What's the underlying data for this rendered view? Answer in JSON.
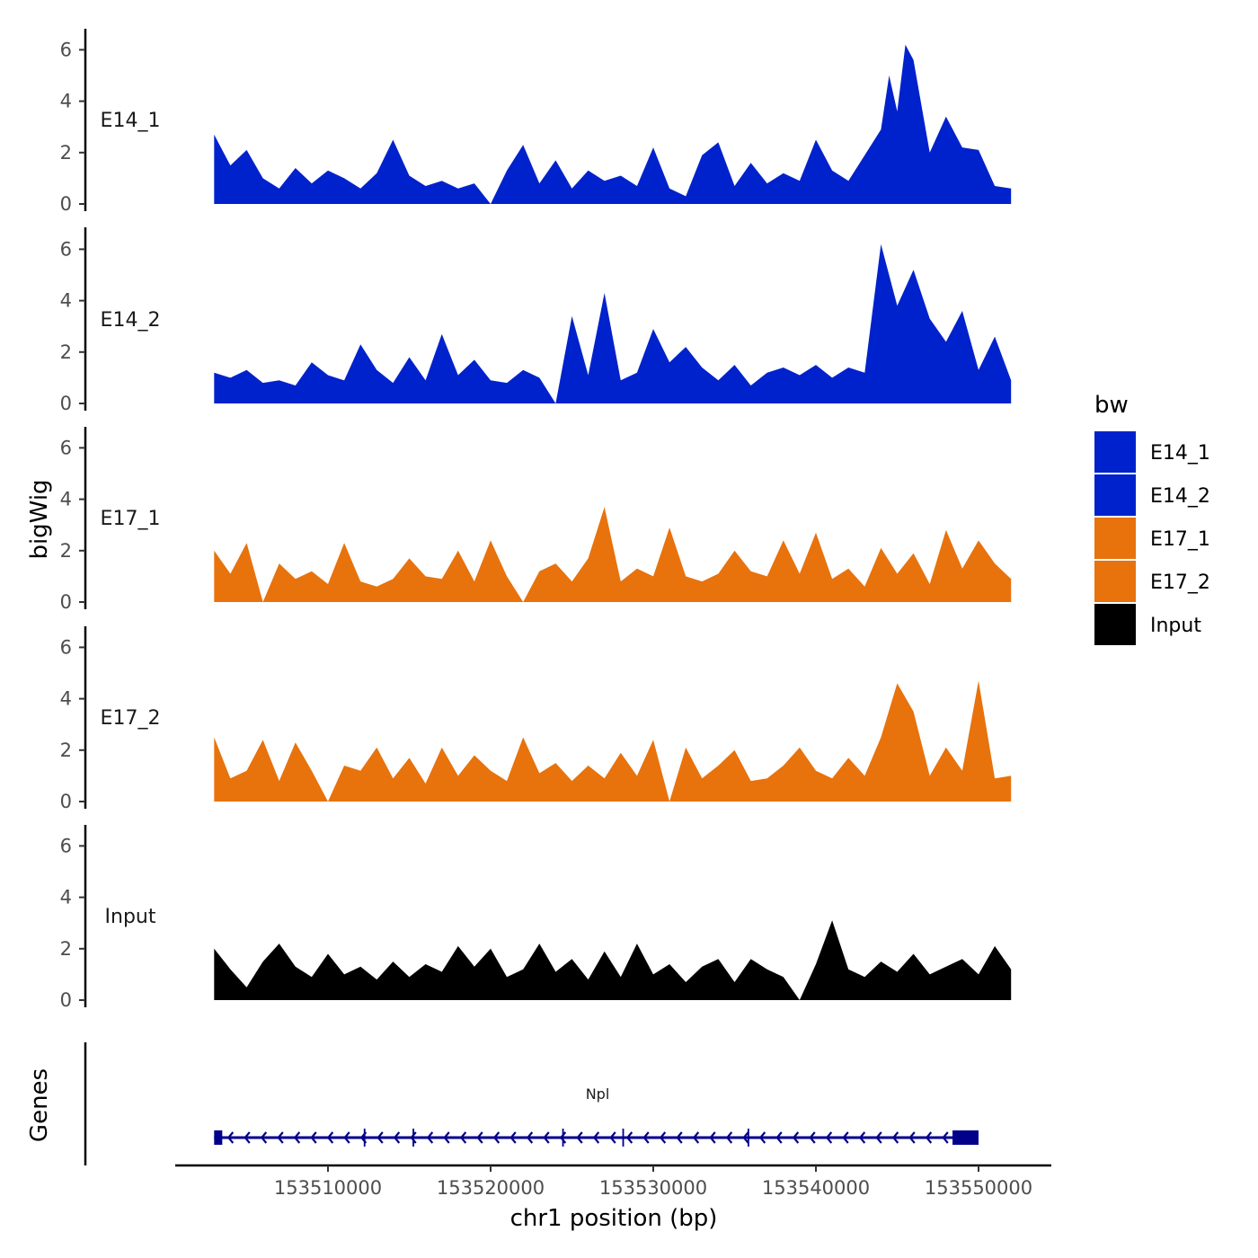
{
  "chart_data": {
    "type": "area",
    "ylabel": "bigWig",
    "xlabel": "chr1 position (bp)",
    "genes_label": "Genes",
    "x_range": [
      153503000,
      153552000
    ],
    "x_ticks": [
      153510000,
      153520000,
      153530000,
      153540000,
      153550000
    ],
    "x_tick_labels": [
      "153510000",
      "153520000",
      "153530000",
      "153540000",
      "153550000"
    ],
    "ylim": [
      0,
      6.8
    ],
    "y_ticks": [
      0,
      2,
      4,
      6
    ],
    "y_tick_labels": [
      "0",
      "2",
      "4",
      "6"
    ],
    "legend": {
      "title": "bw",
      "position": "right",
      "entries": [
        {
          "label": "E14_1",
          "color": "#0022CC"
        },
        {
          "label": "E14_2",
          "color": "#0022CC"
        },
        {
          "label": "E17_1",
          "color": "#E8720C"
        },
        {
          "label": "E17_2",
          "color": "#E8720C"
        },
        {
          "label": "Input",
          "color": "#000000"
        }
      ]
    },
    "series": [
      {
        "name": "E14_1",
        "color": "#0022CC",
        "x": [
          153503000,
          153504000,
          153505000,
          153506000,
          153507000,
          153508000,
          153509000,
          153510000,
          153511000,
          153512000,
          153513000,
          153514000,
          153515000,
          153516000,
          153517000,
          153518000,
          153519000,
          153520000,
          153521000,
          153522000,
          153523000,
          153524000,
          153525000,
          153526000,
          153527000,
          153528000,
          153529000,
          153530000,
          153531000,
          153532000,
          153533000,
          153534000,
          153535000,
          153536000,
          153537000,
          153538000,
          153539000,
          153540000,
          153541000,
          153542000,
          153543000,
          153544000,
          153544500,
          153545000,
          153545500,
          153546000,
          153547000,
          153548000,
          153549000,
          153550000,
          153551000,
          153552000
        ],
        "values": [
          2.7,
          1.5,
          2.1,
          1.0,
          0.6,
          1.4,
          0.8,
          1.3,
          1.0,
          0.6,
          1.2,
          2.5,
          1.1,
          0.7,
          0.9,
          0.6,
          0.8,
          0.0,
          1.3,
          2.3,
          0.8,
          1.7,
          0.6,
          1.3,
          0.9,
          1.1,
          0.7,
          2.2,
          0.6,
          0.3,
          1.9,
          2.4,
          0.7,
          1.6,
          0.8,
          1.2,
          0.9,
          2.5,
          1.3,
          0.9,
          1.9,
          2.9,
          5.0,
          3.6,
          6.2,
          5.6,
          2.0,
          3.4,
          2.2,
          2.1,
          0.7,
          0.6
        ]
      },
      {
        "name": "E14_2",
        "color": "#0022CC",
        "x": [
          153503000,
          153504000,
          153505000,
          153506000,
          153507000,
          153508000,
          153509000,
          153510000,
          153511000,
          153512000,
          153513000,
          153514000,
          153515000,
          153516000,
          153517000,
          153518000,
          153519000,
          153520000,
          153521000,
          153522000,
          153523000,
          153524000,
          153525000,
          153526000,
          153527000,
          153528000,
          153529000,
          153530000,
          153531000,
          153532000,
          153533000,
          153534000,
          153535000,
          153536000,
          153537000,
          153538000,
          153539000,
          153540000,
          153541000,
          153542000,
          153543000,
          153544000,
          153545000,
          153546000,
          153547000,
          153548000,
          153549000,
          153550000,
          153551000,
          153552000
        ],
        "values": [
          1.2,
          1.0,
          1.3,
          0.8,
          0.9,
          0.7,
          1.6,
          1.1,
          0.9,
          2.3,
          1.3,
          0.8,
          1.8,
          0.9,
          2.7,
          1.1,
          1.7,
          0.9,
          0.8,
          1.3,
          1.0,
          0.0,
          3.4,
          1.1,
          4.3,
          0.9,
          1.2,
          2.9,
          1.6,
          2.2,
          1.4,
          0.9,
          1.5,
          0.7,
          1.2,
          1.4,
          1.1,
          1.5,
          1.0,
          1.4,
          1.2,
          6.2,
          3.8,
          5.2,
          3.3,
          2.4,
          3.6,
          1.3,
          2.6,
          0.9
        ]
      },
      {
        "name": "E17_1",
        "color": "#E8720C",
        "x": [
          153503000,
          153504000,
          153505000,
          153506000,
          153507000,
          153508000,
          153509000,
          153510000,
          153511000,
          153512000,
          153513000,
          153514000,
          153515000,
          153516000,
          153517000,
          153518000,
          153519000,
          153520000,
          153521000,
          153522000,
          153523000,
          153524000,
          153525000,
          153526000,
          153527000,
          153528000,
          153529000,
          153530000,
          153531000,
          153532000,
          153533000,
          153534000,
          153535000,
          153536000,
          153537000,
          153538000,
          153539000,
          153540000,
          153541000,
          153542000,
          153543000,
          153544000,
          153545000,
          153546000,
          153547000,
          153548000,
          153549000,
          153550000,
          153551000,
          153552000
        ],
        "values": [
          2.0,
          1.1,
          2.3,
          0.0,
          1.5,
          0.9,
          1.2,
          0.7,
          2.3,
          0.8,
          0.6,
          0.9,
          1.7,
          1.0,
          0.9,
          2.0,
          0.8,
          2.4,
          1.0,
          0.0,
          1.2,
          1.5,
          0.8,
          1.7,
          3.7,
          0.8,
          1.3,
          1.0,
          2.9,
          1.0,
          0.8,
          1.1,
          2.0,
          1.2,
          1.0,
          2.4,
          1.1,
          2.7,
          0.9,
          1.3,
          0.6,
          2.1,
          1.1,
          1.9,
          0.7,
          2.8,
          1.3,
          2.4,
          1.5,
          0.9
        ]
      },
      {
        "name": "E17_2",
        "color": "#E8720C",
        "x": [
          153503000,
          153504000,
          153505000,
          153506000,
          153507000,
          153508000,
          153509000,
          153510000,
          153511000,
          153512000,
          153513000,
          153514000,
          153515000,
          153516000,
          153517000,
          153518000,
          153519000,
          153520000,
          153521000,
          153522000,
          153523000,
          153524000,
          153525000,
          153526000,
          153527000,
          153528000,
          153529000,
          153530000,
          153531000,
          153532000,
          153533000,
          153534000,
          153535000,
          153536000,
          153537000,
          153538000,
          153539000,
          153540000,
          153541000,
          153542000,
          153543000,
          153544000,
          153545000,
          153546000,
          153547000,
          153548000,
          153549000,
          153550000,
          153551000,
          153552000
        ],
        "values": [
          2.5,
          0.9,
          1.2,
          2.4,
          0.8,
          2.3,
          1.2,
          0.0,
          1.4,
          1.2,
          2.1,
          0.9,
          1.7,
          0.7,
          2.1,
          1.0,
          1.8,
          1.2,
          0.8,
          2.5,
          1.1,
          1.5,
          0.8,
          1.4,
          0.9,
          1.9,
          1.0,
          2.4,
          0.0,
          2.1,
          0.9,
          1.4,
          2.0,
          0.8,
          0.9,
          1.4,
          2.1,
          1.2,
          0.9,
          1.7,
          1.0,
          2.5,
          4.6,
          3.5,
          1.0,
          2.1,
          1.2,
          4.7,
          0.9,
          1.0
        ]
      },
      {
        "name": "Input",
        "color": "#000000",
        "x": [
          153503000,
          153504000,
          153505000,
          153506000,
          153507000,
          153508000,
          153509000,
          153510000,
          153511000,
          153512000,
          153513000,
          153514000,
          153515000,
          153516000,
          153517000,
          153518000,
          153519000,
          153520000,
          153521000,
          153522000,
          153523000,
          153524000,
          153525000,
          153526000,
          153527000,
          153528000,
          153529000,
          153530000,
          153531000,
          153532000,
          153533000,
          153534000,
          153535000,
          153536000,
          153537000,
          153538000,
          153539000,
          153540000,
          153541000,
          153542000,
          153543000,
          153544000,
          153545000,
          153546000,
          153547000,
          153548000,
          153549000,
          153550000,
          153551000,
          153552000
        ],
        "values": [
          2.0,
          1.2,
          0.5,
          1.5,
          2.2,
          1.3,
          0.9,
          1.8,
          1.0,
          1.3,
          0.8,
          1.5,
          0.9,
          1.4,
          1.1,
          2.1,
          1.3,
          2.0,
          0.9,
          1.2,
          2.2,
          1.1,
          1.6,
          0.8,
          1.9,
          0.9,
          2.2,
          1.0,
          1.4,
          0.7,
          1.3,
          1.6,
          0.7,
          1.6,
          1.2,
          0.9,
          0.0,
          1.4,
          3.1,
          1.2,
          0.9,
          1.5,
          1.1,
          1.8,
          1.0,
          1.3,
          1.6,
          1.0,
          2.1,
          1.2
        ]
      }
    ],
    "gene": {
      "name": "Npl",
      "strand": "-",
      "start": 153503000,
      "end": 153550000,
      "color": "#00008B",
      "exons": [
        [
          153503000,
          153503500
        ],
        [
          153512200,
          153512300
        ],
        [
          153515200,
          153515300
        ],
        [
          153524400,
          153524500
        ],
        [
          153528100,
          153528200
        ],
        [
          153535800,
          153535900
        ],
        [
          153548400,
          153550000
        ]
      ]
    }
  }
}
